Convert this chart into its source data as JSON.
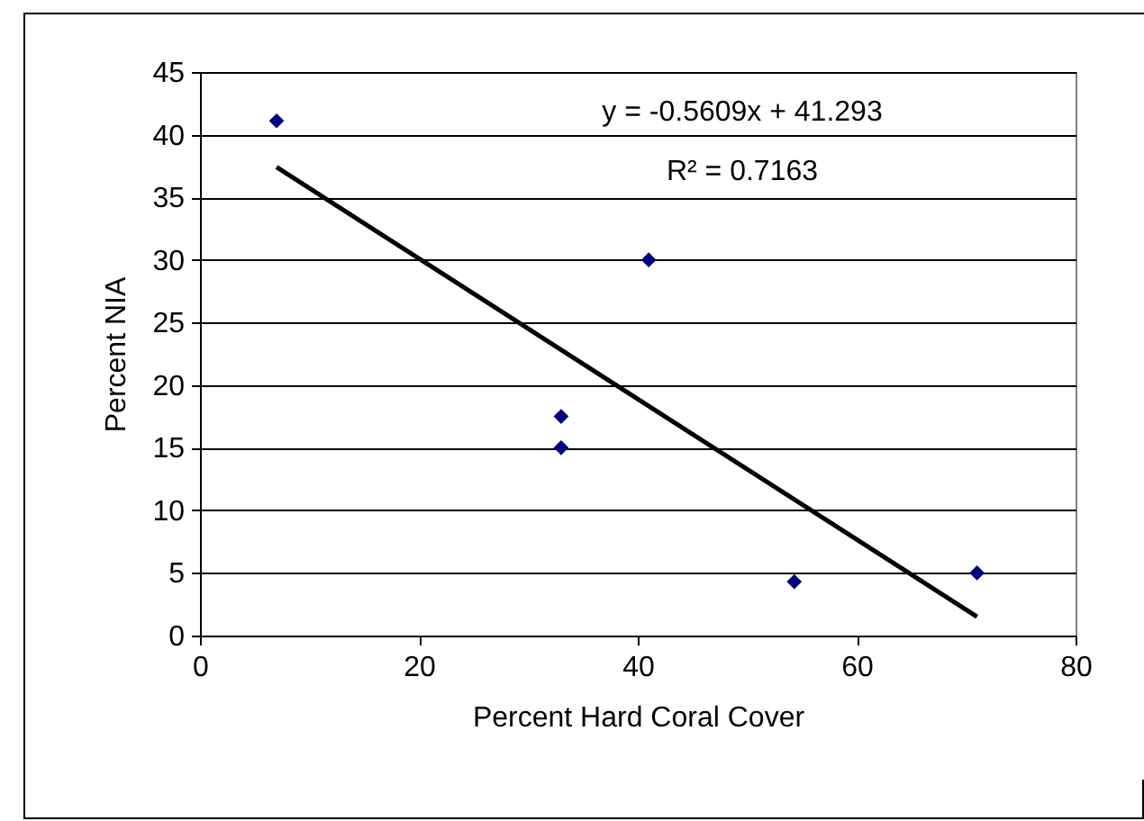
{
  "chart_data": {
    "type": "scatter",
    "xlabel": "Percent Hard Coral Cover",
    "ylabel": "Percent NIA",
    "annotations": [
      "y = -0.5609x + 41.293",
      "R² = 0.7163"
    ],
    "series": [
      {
        "color": "#000080",
        "marker": "diamond",
        "x": [
          7,
          33,
          33,
          41,
          54.3,
          71
        ],
        "values": [
          41.1,
          17.5,
          15,
          30,
          4.3,
          5
        ]
      },
      {
        "type": "line",
        "color": "#000000",
        "line_style": "solid",
        "x": [
          7,
          71
        ],
        "values": [
          37.4,
          1.5
        ]
      }
    ],
    "xlim": [
      0,
      80
    ],
    "xticks": [
      0,
      20,
      40,
      60,
      80
    ],
    "ylim": [
      0,
      45
    ],
    "yticks": [
      0,
      5,
      10,
      15,
      20,
      25,
      30,
      35,
      40,
      45
    ],
    "grid": "y"
  }
}
